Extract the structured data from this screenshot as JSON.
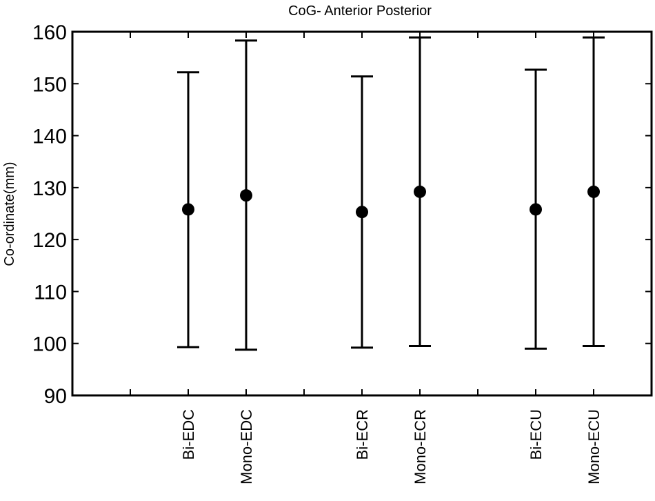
{
  "chart_data": {
    "type": "scatter",
    "title": "CoG- Anterior Posterior",
    "xlabel": "",
    "ylabel": "Co-ordinate(mm)",
    "ylim": [
      90,
      160
    ],
    "yticks": [
      90,
      100,
      110,
      120,
      130,
      140,
      150,
      160
    ],
    "xticks": [
      {
        "pos": 1,
        "label": ""
      },
      {
        "pos": 2,
        "label": "Bi-EDC"
      },
      {
        "pos": 3,
        "label": "Mono-EDC"
      },
      {
        "pos": 4,
        "label": ""
      },
      {
        "pos": 5,
        "label": "Bi-ECR"
      },
      {
        "pos": 6,
        "label": "Mono-ECR"
      },
      {
        "pos": 7,
        "label": ""
      },
      {
        "pos": 8,
        "label": "Bi-ECU"
      },
      {
        "pos": 9,
        "label": "Mono-ECU"
      }
    ],
    "xlim": [
      0,
      10
    ],
    "grid": false,
    "points": [
      {
        "x": 2,
        "category": "Bi-EDC",
        "y": 125.8,
        "lower": 99.3,
        "upper": 152.2
      },
      {
        "x": 3,
        "category": "Mono-EDC",
        "y": 128.5,
        "lower": 98.8,
        "upper": 158.3
      },
      {
        "x": 5,
        "category": "Bi-ECR",
        "y": 125.3,
        "lower": 99.2,
        "upper": 151.4
      },
      {
        "x": 6,
        "category": "Mono-ECR",
        "y": 129.2,
        "lower": 99.5,
        "upper": 158.9
      },
      {
        "x": 8,
        "category": "Bi-ECU",
        "y": 125.8,
        "lower": 99.0,
        "upper": 152.7
      },
      {
        "x": 9,
        "category": "Mono-ECU",
        "y": 129.2,
        "lower": 99.5,
        "upper": 158.9
      }
    ]
  }
}
